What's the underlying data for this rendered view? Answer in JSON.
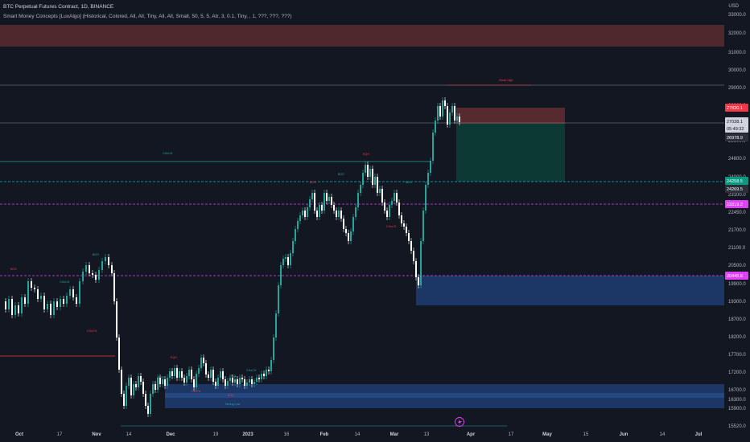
{
  "header": {
    "title": "BTC Perpetual Futures Contract, 1D, BINANCE",
    "indicator": "Smart Money Concepts [LuxAlgo] (Historical, Colored, All, All, Tiny, All, All, Small, 50, 5, 5, Atr, 3, 0.1, Tiny, , 1, ???, ???, ???)"
  },
  "axis": {
    "currency": "USD",
    "y_ticks": [
      "33000.0",
      "32000.0",
      "31000.0",
      "30000.0",
      "29000.0",
      "28000.0",
      "26500.0",
      "25600.0",
      "24800.0",
      "24000.0",
      "23100.0",
      "22450.0",
      "21700.0",
      "21100.0",
      "20500.0",
      "19900.0",
      "19300.0",
      "18700.0",
      "18200.0",
      "17700.0",
      "17200.0",
      "16700.0",
      "16300.0",
      "15900.0",
      "15520.0"
    ],
    "x_ticks": [
      {
        "label": "Oct",
        "bold": true
      },
      {
        "label": "17",
        "bold": false
      },
      {
        "label": "Nov",
        "bold": true
      },
      {
        "label": "14",
        "bold": false
      },
      {
        "label": "Dec",
        "bold": true
      },
      {
        "label": "19",
        "bold": false
      },
      {
        "label": "2023",
        "bold": true
      },
      {
        "label": "16",
        "bold": false
      },
      {
        "label": "Feb",
        "bold": true
      },
      {
        "label": "14",
        "bold": false
      },
      {
        "label": "Mar",
        "bold": true
      },
      {
        "label": "13",
        "bold": false
      },
      {
        "label": "Apr",
        "bold": true
      },
      {
        "label": "17",
        "bold": false
      },
      {
        "label": "May",
        "bold": true
      },
      {
        "label": "15",
        "bold": false
      },
      {
        "label": "Jun",
        "bold": true
      },
      {
        "label": "14",
        "bold": false
      },
      {
        "label": "Jul",
        "bold": true
      }
    ]
  },
  "price_labels": {
    "stop_loss": {
      "value": "27830.1",
      "color": "#f23645"
    },
    "last_price": {
      "value": "27038.1",
      "countdown": "05:49:32"
    },
    "entry": {
      "value": "26978.9",
      "color": "#2a2e39"
    },
    "take_profit_1": {
      "value": "24258.5",
      "color": "#089981"
    },
    "take_profit_2": {
      "value": "24269.5",
      "color": "#2a2e39"
    },
    "level_mid": {
      "value": "23319.2",
      "color": "#e040fb"
    },
    "level_low": {
      "value": "20445.6",
      "color": "#e040fb"
    }
  },
  "smc_labels": {
    "choch_main": "CHoCH",
    "bos": "BOS",
    "choch": "CHoCH",
    "weak_high": "Weak High",
    "strong_low": "Strong Low",
    "eqh": "EQH",
    "eql": "EQL"
  },
  "colors": {
    "background": "#131722",
    "bull_candle": "#26a69a",
    "bear_candle": "#ffffff",
    "bull_zone": "#1e3a6e",
    "bear_zone": "#5b2b30",
    "green_zone": "#0c3b36",
    "magenta": "#e040fb",
    "cyan": "#00bcd4"
  },
  "icons": {
    "lightning": "lightning-icon"
  }
}
